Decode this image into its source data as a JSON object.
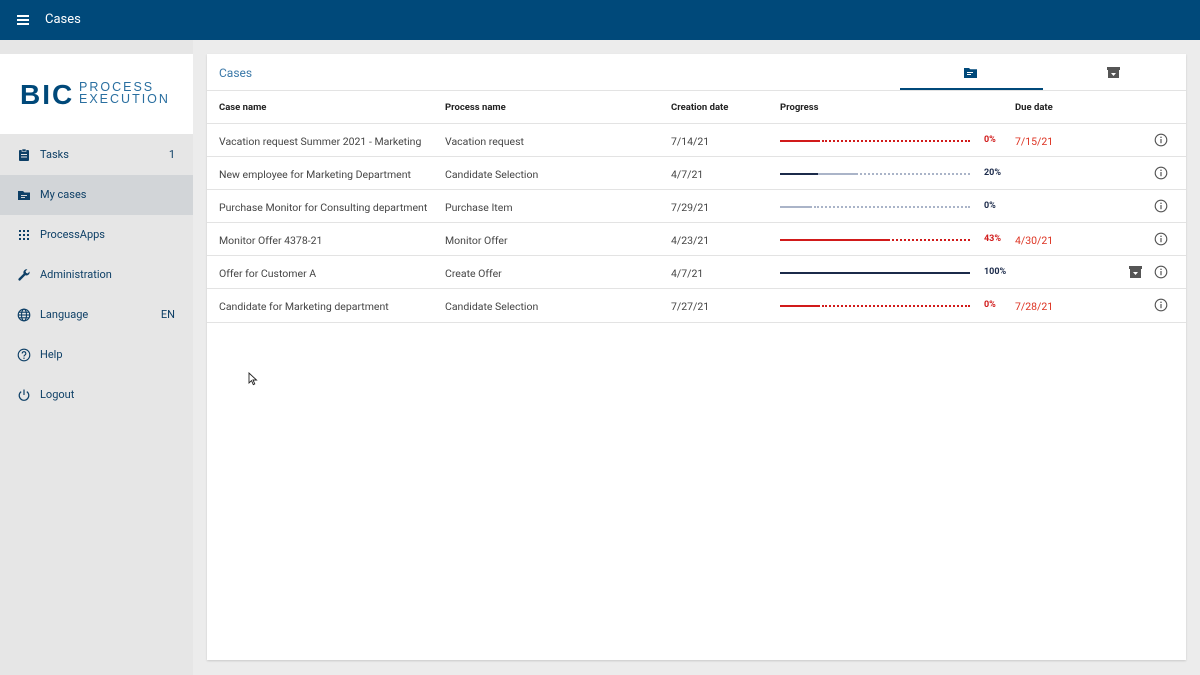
{
  "topbar": {
    "title": "Cases"
  },
  "logo": {
    "bic": "BIC",
    "line1": "PROCESS",
    "line2": "EXECUTION"
  },
  "sidebar": {
    "items": [
      {
        "label": "Tasks",
        "value": "1",
        "icon": "clipboard-icon"
      },
      {
        "label": "My cases",
        "value": "",
        "icon": "folder-icon"
      },
      {
        "label": "ProcessApps",
        "value": "",
        "icon": "grid-icon"
      },
      {
        "label": "Administration",
        "value": "",
        "icon": "wrench-icon"
      },
      {
        "label": "Language",
        "value": "EN",
        "icon": "globe-icon"
      },
      {
        "label": "Help",
        "value": "",
        "icon": "help-icon"
      },
      {
        "label": "Logout",
        "value": "",
        "icon": "power-icon"
      }
    ]
  },
  "panel": {
    "title": "Cases"
  },
  "table": {
    "headers": {
      "case_name": "Case name",
      "process_name": "Process name",
      "creation_date": "Creation date",
      "progress": "Progress",
      "due_date": "Due date"
    },
    "rows": [
      {
        "case_name": "Vacation request Summer 2021 - Marketing",
        "process_name": "Vacation request",
        "creation_date": "7/14/21",
        "progress": "0%",
        "due_date": "7/15/21"
      },
      {
        "case_name": "New employee for Marketing Department",
        "process_name": "Candidate Selection",
        "creation_date": "4/7/21",
        "progress": "20%",
        "due_date": ""
      },
      {
        "case_name": "Purchase Monitor for Consulting department",
        "process_name": "Purchase Item",
        "creation_date": "7/29/21",
        "progress": "0%",
        "due_date": ""
      },
      {
        "case_name": "Monitor Offer 4378-21",
        "process_name": "Monitor Offer",
        "creation_date": "4/23/21",
        "progress": "43%",
        "due_date": "4/30/21"
      },
      {
        "case_name": "Offer for Customer A",
        "process_name": "Create Offer",
        "creation_date": "4/7/21",
        "progress": "100%",
        "due_date": ""
      },
      {
        "case_name": "Candidate for Marketing department",
        "process_name": "Candidate Selection",
        "creation_date": "7/27/21",
        "progress": "0%",
        "due_date": "7/28/21"
      }
    ]
  },
  "colors": {
    "primary": "#00497a",
    "overdue_red": "#d11a1a",
    "progress_dark": "#1b2a4a",
    "progress_light": "#aab4c8"
  }
}
